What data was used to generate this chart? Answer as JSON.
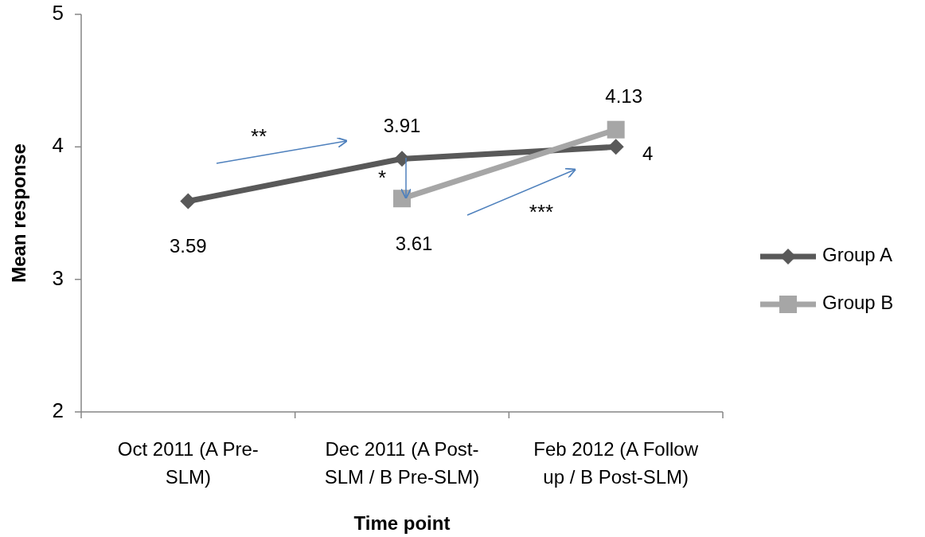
{
  "chart_data": {
    "type": "line",
    "xlabel": "Time point",
    "ylabel": "Mean response",
    "categories": [
      "Oct 2011 (A Pre-SLM)",
      "Dec 2011 (A Post-SLM / B Pre-SLM)",
      "Feb 2012 (A Follow up / B Post-SLM)"
    ],
    "series": [
      {
        "name": "Group A",
        "color": "#595959",
        "values": [
          3.59,
          3.91,
          4
        ],
        "marker": "diamond"
      },
      {
        "name": "Group B",
        "color": "#a6a6a6",
        "values": [
          null,
          3.61,
          4.13
        ],
        "marker": "square"
      }
    ],
    "ylim": [
      2,
      5
    ],
    "yticks": [
      2,
      3,
      4,
      5
    ],
    "grid": false,
    "legend": "right",
    "data_labels": true,
    "annotations": [
      "**",
      "*",
      "***"
    ]
  }
}
